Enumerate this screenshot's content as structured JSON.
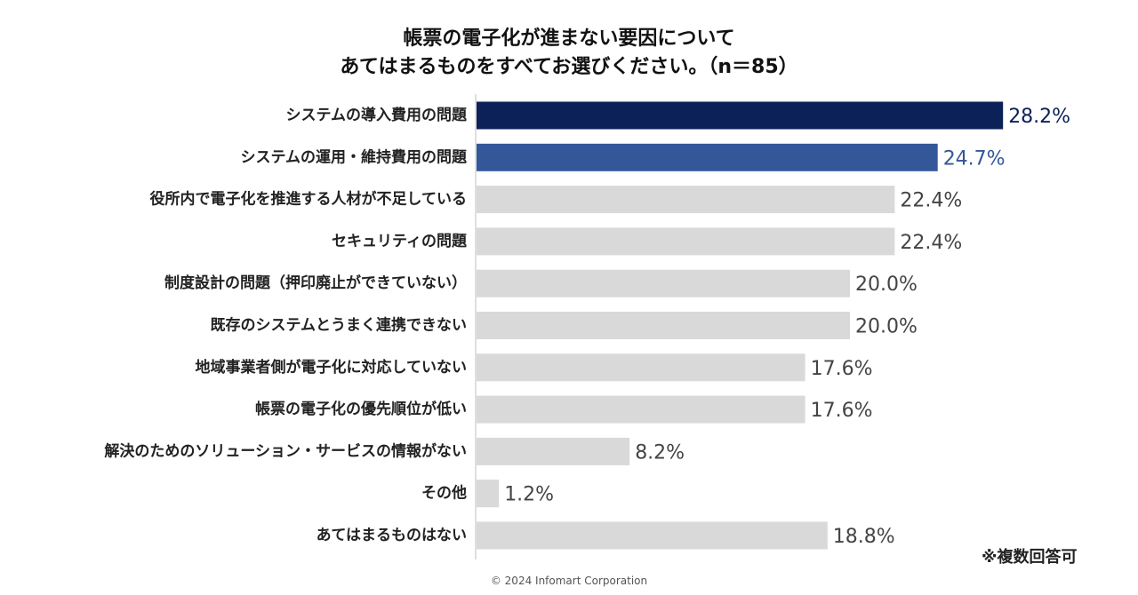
{
  "chart_data": {
    "type": "bar",
    "orientation": "horizontal",
    "title_lines": [
      "帳票の電子化が進まない要因について",
      "あてはまるものをすべてお選びください。（n＝85）"
    ],
    "categories": [
      "システムの導入費用の問題",
      "システムの運用・維持費用の問題",
      "役所内で電子化を推進する人材が不足している",
      "セキュリティの問題",
      "制度設計の問題（押印廃止ができていない）",
      "既存のシステムとうまく連携できない",
      "地域事業者側が電子化に対応していない",
      "帳票の電子化の優先順位が低い",
      "解決のためのソリューション・サービスの情報がない",
      "その他",
      "あてはまるものはない"
    ],
    "values": [
      28.2,
      24.7,
      22.4,
      22.4,
      20.0,
      20.0,
      17.6,
      17.6,
      8.2,
      1.2,
      18.8
    ],
    "value_labels": [
      "28.2%",
      "24.7%",
      "22.4%",
      "22.4%",
      "20.0%",
      "20.0%",
      "17.6%",
      "17.6%",
      "8.2%",
      "1.2%",
      "18.8%"
    ],
    "unit": "%",
    "bar_colors": [
      "#0c2157",
      "#34579a",
      "#d9d9d9",
      "#d9d9d9",
      "#d9d9d9",
      "#d9d9d9",
      "#d9d9d9",
      "#d9d9d9",
      "#d9d9d9",
      "#d9d9d9",
      "#d9d9d9"
    ],
    "label_colors": [
      "#0c2157",
      "#34579a",
      "#444444",
      "#444444",
      "#444444",
      "#444444",
      "#444444",
      "#444444",
      "#444444",
      "#444444",
      "#444444"
    ],
    "xlim": [
      0,
      30
    ],
    "grid": false,
    "legend": "none"
  },
  "note": "※複数回答可",
  "copyright": "© 2024 Infomart Corporation"
}
